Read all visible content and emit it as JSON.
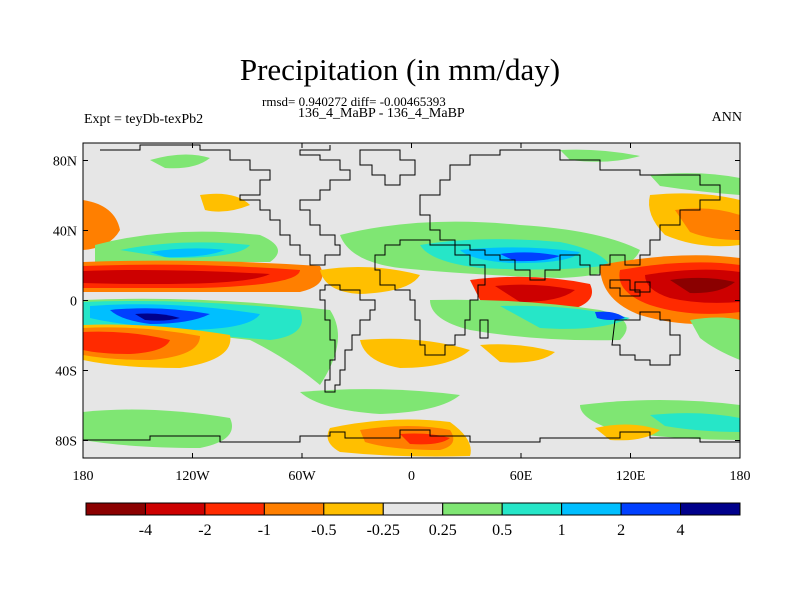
{
  "title": "Precipitation (in mm/day)",
  "stats_text": "rmsd= 0.940272 diff= -0.00465393",
  "subtitle": "136_4_MaBP - 136_4_MaBP",
  "experiment": "Expt = teyDb-texPb2",
  "season": "ANN",
  "map": {
    "lon_ticks": [
      "180",
      "120W",
      "60W",
      "0",
      "60E",
      "120E",
      "180"
    ],
    "lat_ticks": [
      "80N",
      "40N",
      "0",
      "40S",
      "80S"
    ],
    "lon_values": [
      -180,
      -120,
      -60,
      0,
      60,
      120,
      180
    ],
    "lat_values": [
      80,
      40,
      0,
      -40,
      -80
    ]
  },
  "colorbar": {
    "colors": [
      "#8b0000",
      "#cd0000",
      "#ff2a00",
      "#ff7f00",
      "#ffbf00",
      "#e6e6e6",
      "#7fe673",
      "#26e6c8",
      "#00bfff",
      "#0040ff",
      "#00008b"
    ],
    "labels": [
      "-4",
      "-2",
      "-1",
      "-0.5",
      "-0.25",
      "0.25",
      "0.5",
      "1",
      "2",
      "4"
    ]
  }
}
